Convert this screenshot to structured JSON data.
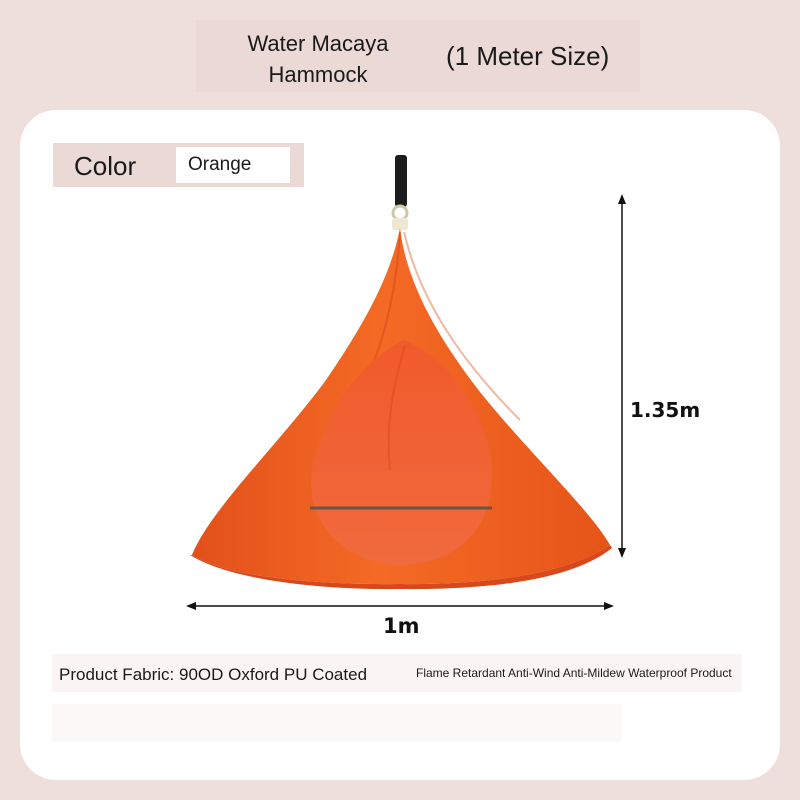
{
  "header": {
    "title": "Water Macaya Hammock",
    "size_label": "(1 Meter Size)"
  },
  "color_option": {
    "label": "Color",
    "value": "Orange"
  },
  "dimensions": {
    "height": "1.35m",
    "width": "1m"
  },
  "fabric": {
    "text": "Product Fabric: 90OD Oxford PU Coated",
    "features": "Flame Retardant Anti-Wind Anti-Mildew Waterproof Product"
  },
  "colors": {
    "background": "#eedfdc",
    "label_box": "#ead9d5",
    "hammock_orange": "#ef5a1c"
  },
  "icons": {
    "product_image": "teardrop-hammock-tent",
    "height_arrow": "vertical-double-arrow",
    "width_arrow": "horizontal-double-arrow"
  }
}
